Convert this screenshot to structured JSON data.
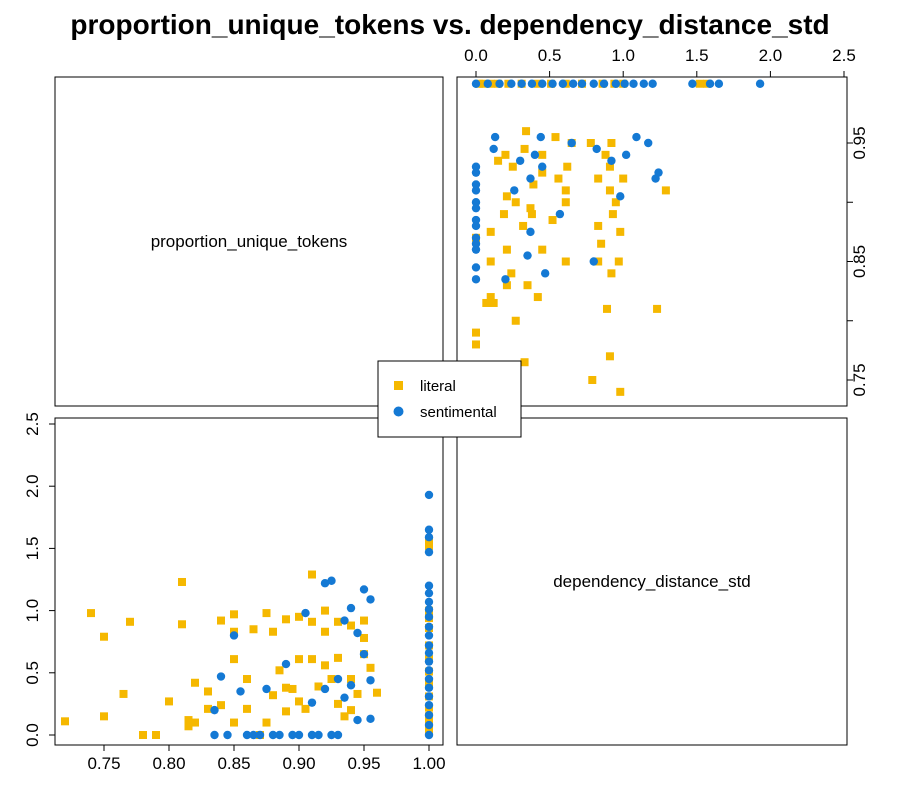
{
  "chart_data": {
    "type": "scatter",
    "title": "proportion_unique_tokens vs. dependency_distance_std",
    "variables": [
      "proportion_unique_tokens",
      "dependency_distance_std"
    ],
    "legend": {
      "position": "center",
      "entries": [
        {
          "name": "literal",
          "color": "#F5B800",
          "marker": "square"
        },
        {
          "name": "sentimental",
          "color": "#1479D4",
          "marker": "circle"
        }
      ]
    },
    "axes": {
      "proportion_unique_tokens": {
        "ticks": [
          0.75,
          0.8,
          0.85,
          0.9,
          0.95,
          1.0
        ],
        "tick_labels": [
          "0.75",
          "0.80",
          "0.85",
          "0.90",
          "0.95",
          "1.00"
        ]
      },
      "dependency_distance_std": {
        "ticks": [
          0.0,
          0.5,
          1.0,
          1.5,
          2.0,
          2.5
        ],
        "tick_labels": [
          "0.0",
          "0.5",
          "1.0",
          "1.5",
          "2.0",
          "2.5"
        ]
      },
      "proportion_unique_tokens_right": {
        "ticks": [
          0.75,
          0.85,
          0.95
        ],
        "tick_labels": [
          "0.75",
          "0.85",
          "0.95"
        ]
      }
    },
    "xlim": [
      0.71,
      1.005
    ],
    "ylim": [
      -0.05,
      2.5
    ],
    "series": [
      {
        "name": "literal",
        "x": [
          0.72,
          0.74,
          0.75,
          0.75,
          0.765,
          0.77,
          0.78,
          0.79,
          0.8,
          0.81,
          0.81,
          0.815,
          0.815,
          0.82,
          0.82,
          0.83,
          0.83,
          0.84,
          0.84,
          0.85,
          0.85,
          0.85,
          0.85,
          0.86,
          0.86,
          0.865,
          0.87,
          0.875,
          0.875,
          0.88,
          0.88,
          0.885,
          0.89,
          0.89,
          0.89,
          0.895,
          0.9,
          0.9,
          0.9,
          0.905,
          0.91,
          0.91,
          0.91,
          0.915,
          0.92,
          0.92,
          0.92,
          0.925,
          0.93,
          0.93,
          0.93,
          0.935,
          0.94,
          0.94,
          0.94,
          0.945,
          0.95,
          0.95,
          0.95,
          0.955,
          0.96,
          1.0,
          1.0,
          1.0,
          1.0,
          1.0,
          1.0,
          1.0,
          1.0,
          1.0,
          1.0,
          1.0,
          1.0,
          1.0,
          1.0,
          1.0
        ],
        "y": [
          0.11,
          0.98,
          0.79,
          0.15,
          0.33,
          0.91,
          0.0,
          0.0,
          0.27,
          1.23,
          0.89,
          0.07,
          0.12,
          0.42,
          0.1,
          0.35,
          0.21,
          0.92,
          0.24,
          0.97,
          0.83,
          0.61,
          0.1,
          0.45,
          0.21,
          0.85,
          0.0,
          0.98,
          0.1,
          0.83,
          0.32,
          0.52,
          0.93,
          0.38,
          0.19,
          0.37,
          0.95,
          0.61,
          0.27,
          0.21,
          1.29,
          0.91,
          0.61,
          0.39,
          1.0,
          0.83,
          0.56,
          0.45,
          0.91,
          0.62,
          0.25,
          0.15,
          0.88,
          0.45,
          0.2,
          0.33,
          0.92,
          0.78,
          0.65,
          0.54,
          0.34,
          1.57,
          1.52,
          1.0,
          0.94,
          0.86,
          0.72,
          0.61,
          0.51,
          0.42,
          0.31,
          0.22,
          0.15,
          0.1,
          0.05,
          0.02
        ]
      },
      {
        "name": "sentimental",
        "x": [
          0.835,
          0.835,
          0.84,
          0.845,
          0.85,
          0.855,
          0.86,
          0.865,
          0.87,
          0.875,
          0.88,
          0.885,
          0.89,
          0.895,
          0.9,
          0.905,
          0.91,
          0.91,
          0.915,
          0.92,
          0.92,
          0.925,
          0.925,
          0.93,
          0.93,
          0.935,
          0.935,
          0.94,
          0.94,
          0.945,
          0.945,
          0.95,
          0.95,
          0.955,
          0.955,
          0.955,
          1.0,
          1.0,
          1.0,
          1.0,
          1.0,
          1.0,
          1.0,
          1.0,
          1.0,
          1.0,
          1.0,
          1.0,
          1.0,
          1.0,
          1.0,
          1.0,
          1.0,
          1.0,
          1.0,
          1.0,
          1.0,
          1.0
        ],
        "y": [
          0.0,
          0.2,
          0.47,
          0.0,
          0.8,
          0.35,
          0.0,
          0.0,
          0.0,
          0.37,
          0.0,
          0.0,
          0.57,
          0.0,
          0.0,
          0.98,
          0.26,
          0.0,
          0.0,
          1.22,
          0.37,
          0.0,
          1.24,
          0.45,
          0.0,
          0.92,
          0.3,
          1.02,
          0.4,
          0.82,
          0.12,
          1.17,
          0.65,
          1.09,
          0.44,
          0.13,
          1.93,
          1.65,
          1.59,
          1.47,
          1.2,
          1.14,
          1.07,
          1.01,
          0.95,
          0.87,
          0.8,
          0.72,
          0.66,
          0.59,
          0.52,
          0.45,
          0.38,
          0.31,
          0.24,
          0.16,
          0.08,
          0.0
        ]
      }
    ]
  }
}
